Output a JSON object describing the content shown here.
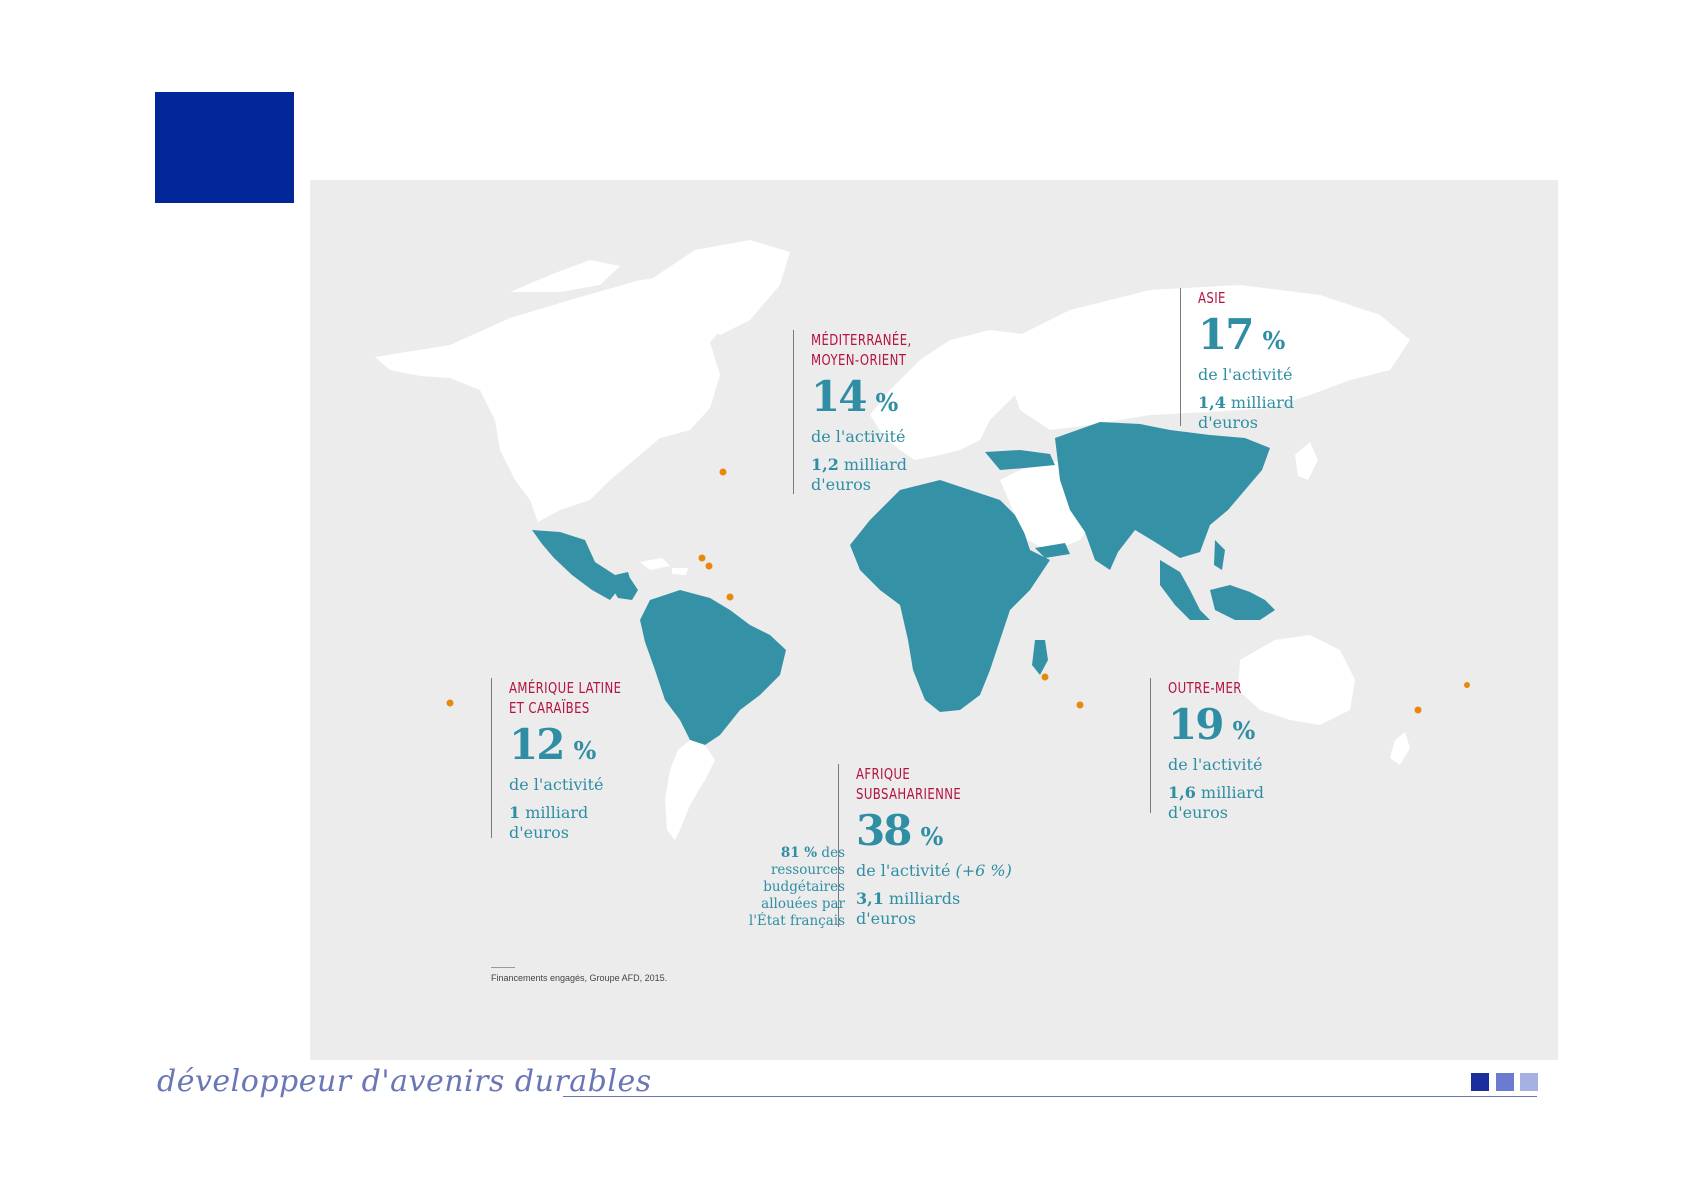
{
  "colors": {
    "accent_blue": "#00269a",
    "region_teal": "#3592a6",
    "title_red": "#b4123f",
    "outremer_orange": "#e8890c",
    "background_panel": "#ececec",
    "land_white": "#ffffff",
    "tagline_blue": "#6a76b6",
    "square_1": "#1a2f9b",
    "square_2": "#6a7bd0",
    "square_3": "#a6b0e2"
  },
  "regions": {
    "med": {
      "title_1": "MÉDITERRANÉE,",
      "title_2": "MOYEN-ORIENT",
      "pct": "14",
      "pct_symbol": "%",
      "activity": "de l'activité",
      "amount_bold": "1,2",
      "amount_rest": " milliard",
      "amount_unit": "d'euros"
    },
    "asie": {
      "title_1": "ASIE",
      "pct": "17",
      "pct_symbol": "%",
      "activity": "de l'activité",
      "amount_bold": "1,4",
      "amount_rest": " milliard",
      "amount_unit": "d'euros"
    },
    "amlat": {
      "title_1": "AMÉRIQUE LATINE",
      "title_2": "ET CARAÏBES",
      "pct": "12",
      "pct_symbol": "%",
      "activity": "de l'activité",
      "amount_bold": "1",
      "amount_rest": " milliard",
      "amount_unit": "d'euros"
    },
    "outremer": {
      "title_1": "OUTRE-MER",
      "pct": "19",
      "pct_symbol": "%",
      "activity": "de l'activité",
      "amount_bold": "1,6",
      "amount_rest": " milliard",
      "amount_unit": "d'euros"
    },
    "afrique": {
      "title_1": "AFRIQUE",
      "title_2": "SUBSAHARIENNE",
      "pct": "38",
      "pct_symbol": "%",
      "activity": "de l'activité",
      "activity_extra": " (+6 %)",
      "amount_bold": "3,1",
      "amount_rest": " milliards",
      "amount_unit": "d'euros"
    }
  },
  "note_81": {
    "bold": "81 %",
    "rest_1": " des",
    "line_2": "ressources",
    "line_3": "budgétaires",
    "line_4": "allouées par",
    "line_5": "l'État français"
  },
  "source": "Financements engagés, Groupe AFD, 2015.",
  "footer": {
    "tagline": "développeur d'avenirs durables"
  }
}
